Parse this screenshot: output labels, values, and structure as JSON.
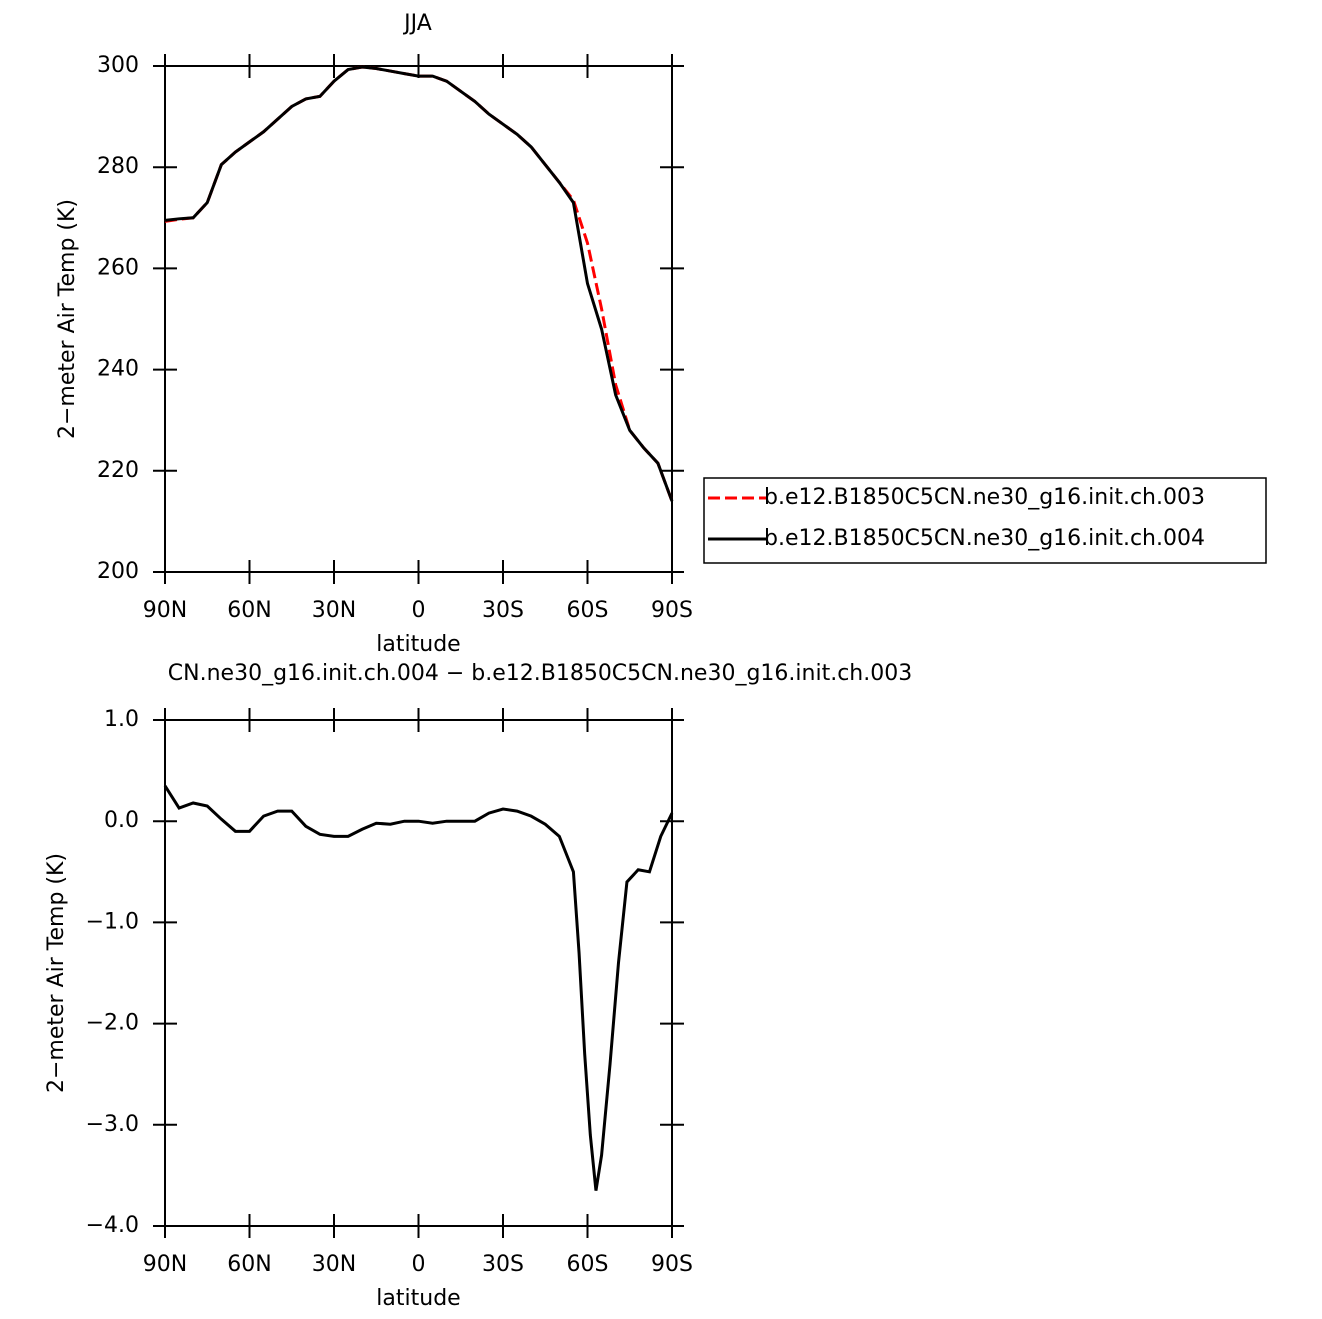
{
  "chart_data": [
    {
      "type": "line",
      "title": "JJA",
      "xlabel": "latitude",
      "ylabel": "2−meter Air Temp (K)",
      "x": [
        90,
        85,
        80,
        75,
        70,
        65,
        60,
        55,
        50,
        45,
        40,
        35,
        30,
        25,
        20,
        15,
        10,
        5,
        0,
        -5,
        -10,
        -15,
        -20,
        -25,
        -30,
        -35,
        -40,
        -45,
        -50,
        -55,
        -60,
        -65,
        -70,
        -75,
        -80,
        -85,
        -90
      ],
      "series": [
        {
          "name": "b.e12.B1850C5CN.ne30_g16.init.ch.003",
          "color": "#ff0000",
          "dashed": true,
          "values": [
            269.3,
            269.7,
            270,
            273,
            280.5,
            283,
            285,
            287,
            289.5,
            292,
            293.5,
            294,
            297,
            299.3,
            299.8,
            299.5,
            299,
            298.5,
            298,
            298,
            297,
            295,
            293,
            290.5,
            288.5,
            286.5,
            284,
            280.5,
            277,
            273.5,
            265,
            252,
            237,
            228,
            224.5,
            221.5,
            214
          ]
        },
        {
          "name": "b.e12.B1850C5CN.ne30_g16.init.ch.004",
          "color": "#000000",
          "dashed": false,
          "values": [
            269.5,
            269.8,
            270,
            273,
            280.5,
            283,
            285,
            287,
            289.5,
            292,
            293.5,
            294,
            297,
            299.3,
            299.8,
            299.5,
            299,
            298.5,
            298,
            298,
            297,
            295,
            293,
            290.5,
            288.5,
            286.5,
            284,
            280.5,
            277,
            273,
            257,
            248,
            235,
            228,
            224.5,
            221.5,
            214
          ]
        }
      ],
      "xlim": [
        90,
        -90
      ],
      "xticks": [
        {
          "value": 90,
          "label": "90N"
        },
        {
          "value": 60,
          "label": "60N"
        },
        {
          "value": 30,
          "label": "30N"
        },
        0,
        {
          "value": -30,
          "label": "30S"
        },
        {
          "value": -60,
          "label": "60S"
        },
        {
          "value": -90,
          "label": "90S"
        }
      ],
      "ylim": [
        200,
        300
      ],
      "yticks": [
        200,
        220,
        240,
        260,
        280,
        300
      ],
      "legend": "right"
    },
    {
      "type": "line",
      "title": "CN.ne30_g16.init.ch.004 − b.e12.B1850C5CN.ne30_g16.init.ch.003",
      "xlabel": "latitude",
      "ylabel": "2−meter Air Temp (K)",
      "x": [
        90,
        85,
        80,
        75,
        70,
        65,
        60,
        55,
        50,
        45,
        40,
        35,
        30,
        25,
        20,
        15,
        10,
        5,
        0,
        -5,
        -10,
        -15,
        -20,
        -25,
        -30,
        -35,
        -40,
        -45,
        -50,
        -55,
        -57,
        -59,
        -61,
        -63,
        -65,
        -68,
        -71,
        -74,
        -78,
        -82,
        -86,
        -90
      ],
      "series": [
        {
          "color": "#000000",
          "dashed": false,
          "values": [
            0.35,
            0.13,
            0.18,
            0.15,
            0.02,
            -0.1,
            -0.1,
            0.05,
            0.1,
            0.1,
            -0.05,
            -0.13,
            -0.15,
            -0.15,
            -0.08,
            -0.02,
            -0.03,
            0,
            0,
            -0.02,
            0,
            0,
            0,
            0.08,
            0.12,
            0.1,
            0.05,
            -0.03,
            -0.15,
            -0.5,
            -1.3,
            -2.3,
            -3.1,
            -3.65,
            -3.3,
            -2.4,
            -1.4,
            -0.6,
            -0.48,
            -0.5,
            -0.15,
            0.08
          ]
        }
      ],
      "xlim": [
        90,
        -90
      ],
      "xticks": [
        {
          "value": 90,
          "label": "90N"
        },
        {
          "value": 60,
          "label": "60N"
        },
        {
          "value": 30,
          "label": "30N"
        },
        0,
        {
          "value": -30,
          "label": "30S"
        },
        {
          "value": -60,
          "label": "60S"
        },
        {
          "value": -90,
          "label": "90S"
        }
      ],
      "ylim": [
        -4,
        1
      ],
      "yticks": [
        {
          "value": -4,
          "label": "−4.0"
        },
        {
          "value": -3,
          "label": "−3.0"
        },
        {
          "value": -2,
          "label": "−2.0"
        },
        {
          "value": -1,
          "label": "−1.0"
        },
        {
          "value": 0,
          "label": "0.0"
        },
        {
          "value": 1,
          "label": "1.0"
        }
      ]
    }
  ]
}
